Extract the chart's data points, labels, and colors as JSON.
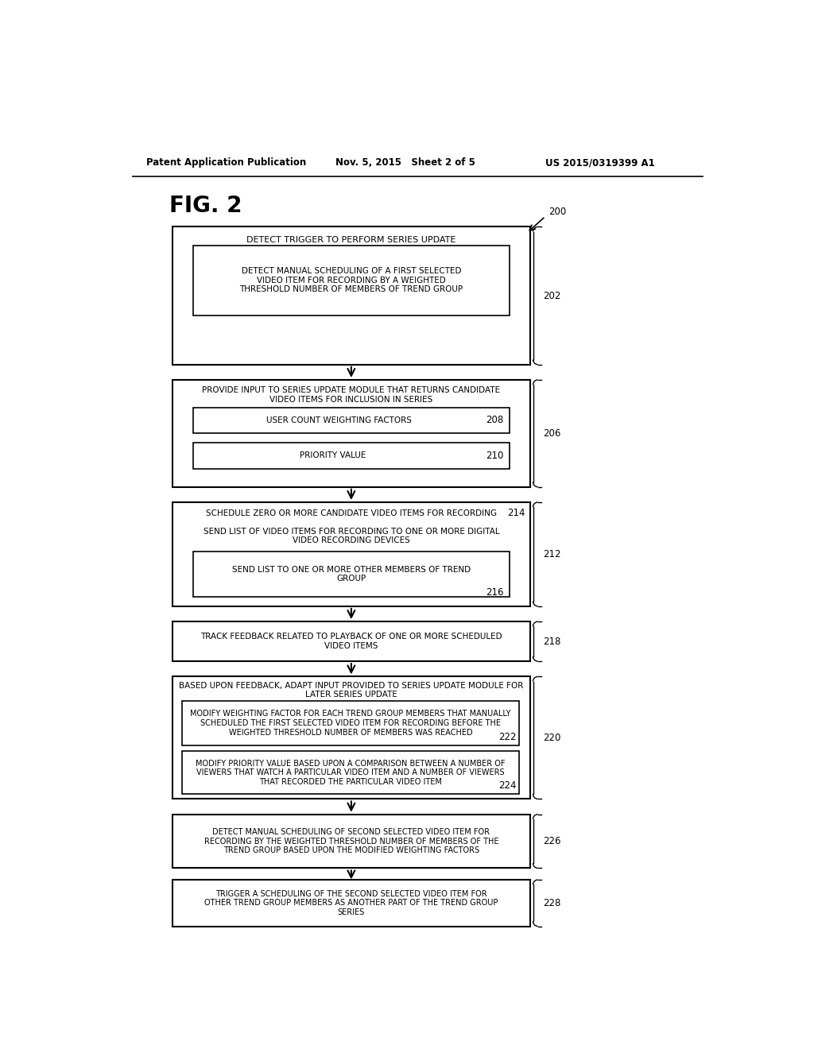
{
  "header_left": "Patent Application Publication",
  "header_mid": "Nov. 5, 2015   Sheet 2 of 5",
  "header_right": "US 2015/0319399 A1",
  "fig_label": "FIG. 2",
  "box202_title": "DETECT TRIGGER TO PERFORM SERIES UPDATE",
  "box202_inner": "DETECT MANUAL SCHEDULING OF A FIRST SELECTED\nVIDEO ITEM FOR RECORDING BY A WEIGHTED\nTHRESHOLD NUMBER OF MEMBERS OF TREND GROUP",
  "box206_title": "PROVIDE INPUT TO SERIES UPDATE MODULE THAT RETURNS CANDIDATE\nVIDEO ITEMS FOR INCLUSION IN SERIES",
  "box208_text": "USER COUNT WEIGHTING FACTORS",
  "box210_text": "PRIORITY VALUE",
  "box212_title": "SCHEDULE ZERO OR MORE CANDIDATE VIDEO ITEMS FOR RECORDING",
  "box214_text": "SEND LIST OF VIDEO ITEMS FOR RECORDING TO ONE OR MORE DIGITAL\nVIDEO RECORDING DEVICES",
  "box216_text": "SEND LIST TO ONE OR MORE OTHER MEMBERS OF TREND\nGROUP",
  "box218_text": "TRACK FEEDBACK RELATED TO PLAYBACK OF ONE OR MORE SCHEDULED\nVIDEO ITEMS",
  "box220_title": "BASED UPON FEEDBACK, ADAPT INPUT PROVIDED TO SERIES UPDATE MODULE FOR\nLATER SERIES UPDATE",
  "box222_text": "MODIFY WEIGHTING FACTOR FOR EACH TREND GROUP MEMBERS THAT MANUALLY\nSCHEDULED THE FIRST SELECTED VIDEO ITEM FOR RECORDING BEFORE THE\nWEIGHTED THRESHOLD NUMBER OF MEMBERS WAS REACHED",
  "box224_text": "MODIFY PRIORITY VALUE BASED UPON A COMPARISON BETWEEN A NUMBER OF\nVIEWERS THAT WATCH A PARTICULAR VIDEO ITEM AND A NUMBER OF VIEWERS\nTHAT RECORDED THE PARTICULAR VIDEO ITEM",
  "box226_text": "DETECT MANUAL SCHEDULING OF SECOND SELECTED VIDEO ITEM FOR\nRECORDING BY THE WEIGHTED THRESHOLD NUMBER OF MEMBERS OF THE\nTREND GROUP BASED UPON THE MODIFIED WEIGHTING FACTORS",
  "box228_text": "TRIGGER A SCHEDULING OF THE SECOND SELECTED VIDEO ITEM FOR\nOTHER TREND GROUP MEMBERS AS ANOTHER PART OF THE TREND GROUP\nSERIES",
  "ref_200": "200",
  "ref_202": "202",
  "ref_206": "206",
  "ref_208": "208",
  "ref_210": "210",
  "ref_212": "212",
  "ref_214": "214",
  "ref_216": "216",
  "ref_218": "218",
  "ref_220": "220",
  "ref_222": "222",
  "ref_224": "224",
  "ref_226": "226",
  "ref_228": "228",
  "bg_color": "#ffffff",
  "line_color": "#000000",
  "text_color": "#000000"
}
